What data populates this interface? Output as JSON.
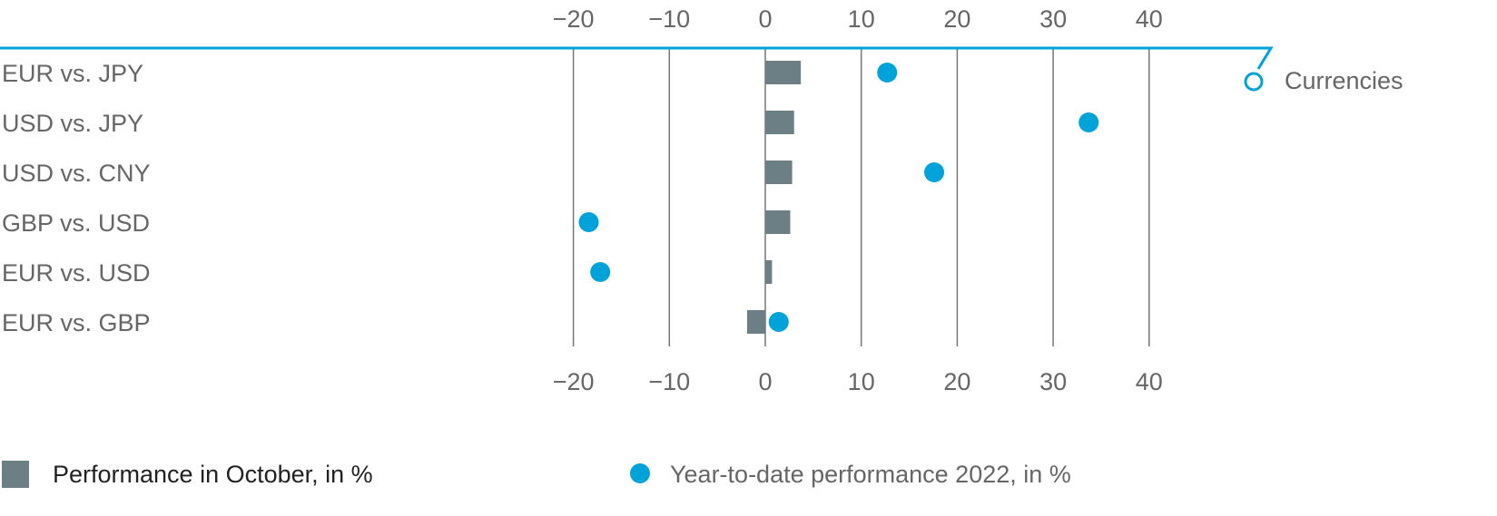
{
  "chart_data": {
    "type": "bar",
    "orientation": "horizontal",
    "panel_label": "Currencies",
    "categories": [
      "EUR vs. JPY",
      "USD vs. JPY",
      "USD vs. CNY",
      "GBP vs. USD",
      "EUR vs. USD",
      "EUR vs. GBP"
    ],
    "series": [
      {
        "name": "Performance in October, in %",
        "mark": "bar",
        "color": "#6b7f84",
        "values": [
          3.7,
          3.0,
          2.8,
          2.6,
          0.7,
          -1.9
        ]
      },
      {
        "name": "Year-to-date performance 2022, in %",
        "mark": "dot",
        "color": "#00a3d9",
        "values": [
          12.7,
          33.7,
          17.6,
          -18.4,
          -17.2,
          1.4
        ]
      }
    ],
    "xlim": [
      -20,
      40
    ],
    "xticks": [
      "−20",
      "−10",
      "0",
      "10",
      "20",
      "30",
      "40"
    ],
    "xtick_values": [
      -20,
      -10,
      0,
      10,
      20,
      30,
      40
    ],
    "grid": true,
    "legend_position": "bottom",
    "accent_color": "#00a3d9"
  }
}
